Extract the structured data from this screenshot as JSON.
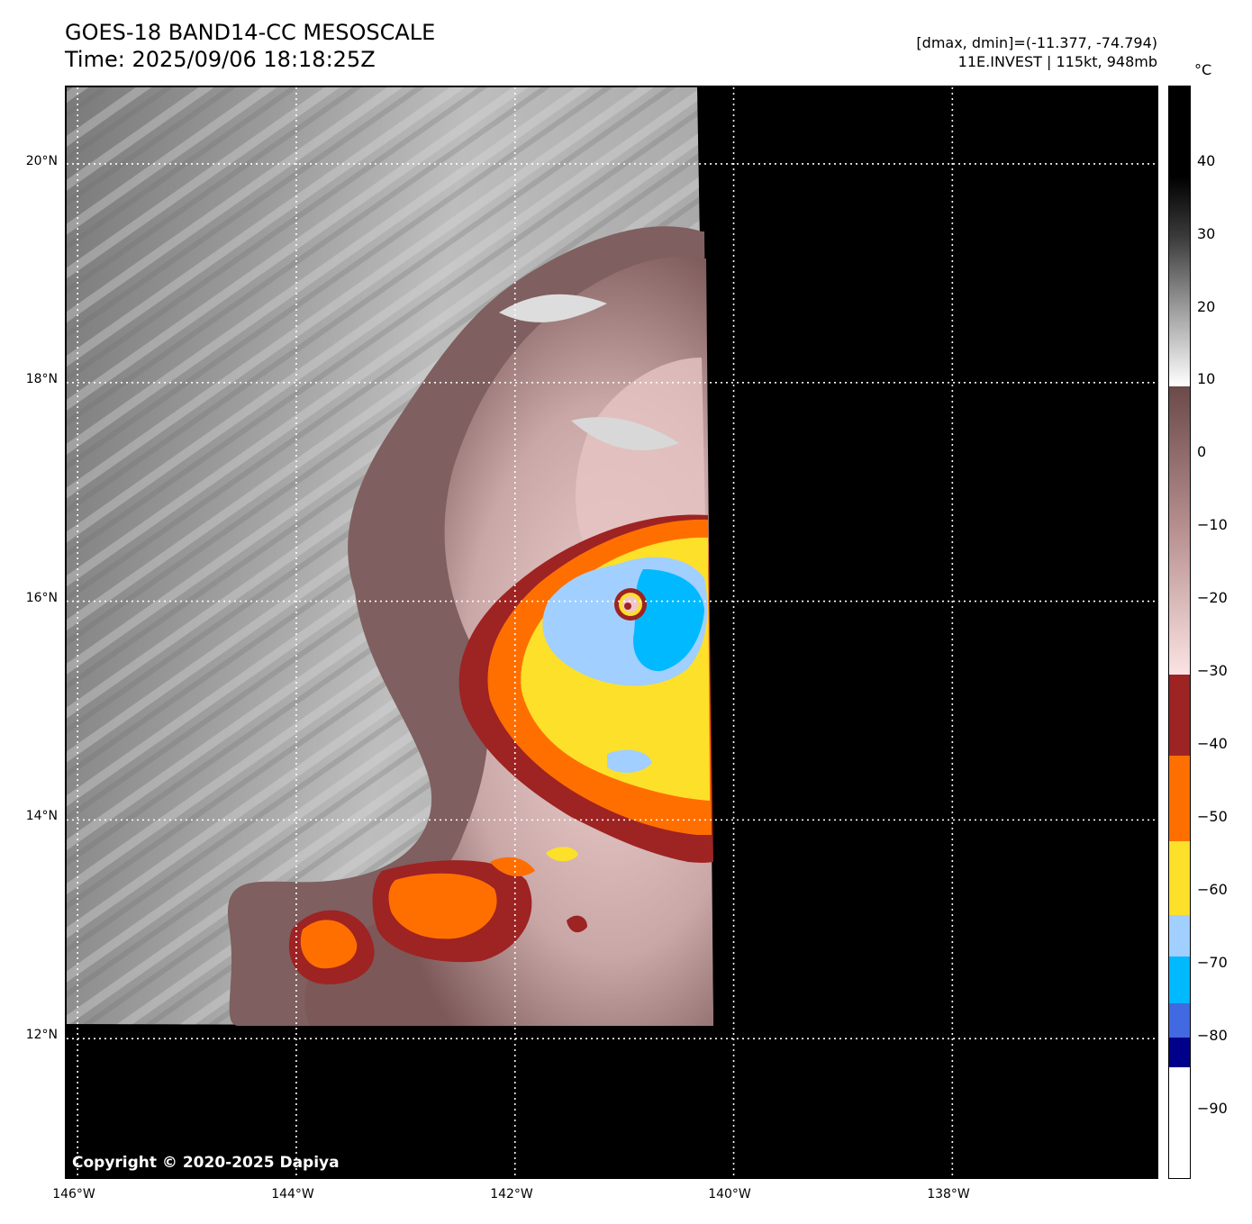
{
  "title": {
    "line1": "GOES-18 BAND14-CC MESOSCALE",
    "line2": "Time: 2025/09/06 18:18:25Z"
  },
  "info": {
    "range": "[dmax, dmin]=(-11.377, -74.794)",
    "storm": "11E.INVEST | 115kt, 948mb"
  },
  "map": {
    "copyright": "Copyright © 2020-2025 Dapiya",
    "lat_labels": [
      "20°N",
      "18°N",
      "16°N",
      "14°N",
      "12°N"
    ],
    "lon_labels": [
      "146°W",
      "144°W",
      "142°W",
      "140°W",
      "138°W"
    ],
    "extent": {
      "lon_min": -146.1,
      "lon_max": -136.1,
      "lat_min": 10.7,
      "lat_max": 20.7
    }
  },
  "colorbar": {
    "unit": "°C",
    "labels": [
      "40",
      "30",
      "20",
      "10",
      "0",
      "−10",
      "−20",
      "−30",
      "−40",
      "−50",
      "−60",
      "−70",
      "−80",
      "−90"
    ],
    "colors": {
      "warm_gray": "#000000",
      "mid_gray": "#808080",
      "light_gray": "#f2f2f2",
      "brown": "#6b4a4a",
      "pink": "#f5d8d8",
      "dark_red": "#9e2323",
      "orange": "#ff6f00",
      "yellow": "#fde02a",
      "light_blue": "#a1cfff",
      "cyan": "#00b9ff",
      "royal_blue": "#4169e1",
      "navy": "#00008b",
      "white": "#ffffff"
    }
  }
}
